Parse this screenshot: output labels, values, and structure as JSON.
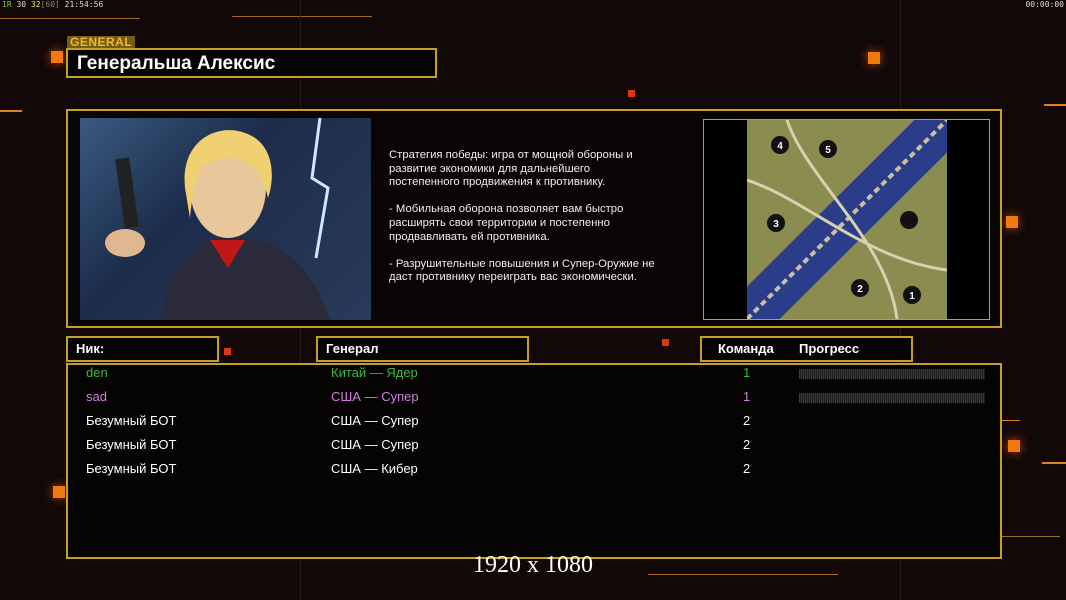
{
  "overlay": {
    "fps_r": "1R",
    "fps_a": "30",
    "fps_b": "32",
    "fps_c": "[60]",
    "time": "21:54:56",
    "timer": "00:00:00"
  },
  "header": {
    "tag": "GENERAL",
    "general_name": "Генеральша Алексис"
  },
  "description": "Стратегия победы: игра от мощной обороны и\n развитие экономики для дальнейшего\n постепенного продвижения к противнику.\n\n- Мобильная оборона позволяет вам быстро\n расширять свои территории и постепенно\n продвавливать ей противника.\n\n- Разрушительные повышения и Супер-Оружие не\n даст противнику переиграть вас экономически.",
  "map": {
    "start_positions": [
      "1",
      "2",
      "3",
      "4",
      "5"
    ]
  },
  "columns": {
    "nick": "Ник:",
    "general": "Генерал",
    "team": "Команда",
    "progress": "Прогресс"
  },
  "players": [
    {
      "nick": "den",
      "general": "Китай — Ядер",
      "team": "1",
      "color": "#3cb83c",
      "progress": 0
    },
    {
      "nick": "sad",
      "general": "США — Супер",
      "team": "1",
      "color": "#d080e0",
      "progress": 0
    },
    {
      "nick": "Безумный БОТ",
      "general": "США — Супер",
      "team": "2",
      "color": "#ffffff"
    },
    {
      "nick": "Безумный БОТ",
      "general": "США — Супер",
      "team": "2",
      "color": "#ffffff"
    },
    {
      "nick": "Безумный БОТ",
      "general": "США — Кибер",
      "team": "2",
      "color": "#ffffff"
    }
  ],
  "resolution": "1920 x 1080",
  "colors": {
    "frame": "#c8a020",
    "accent": "#f07a10"
  }
}
